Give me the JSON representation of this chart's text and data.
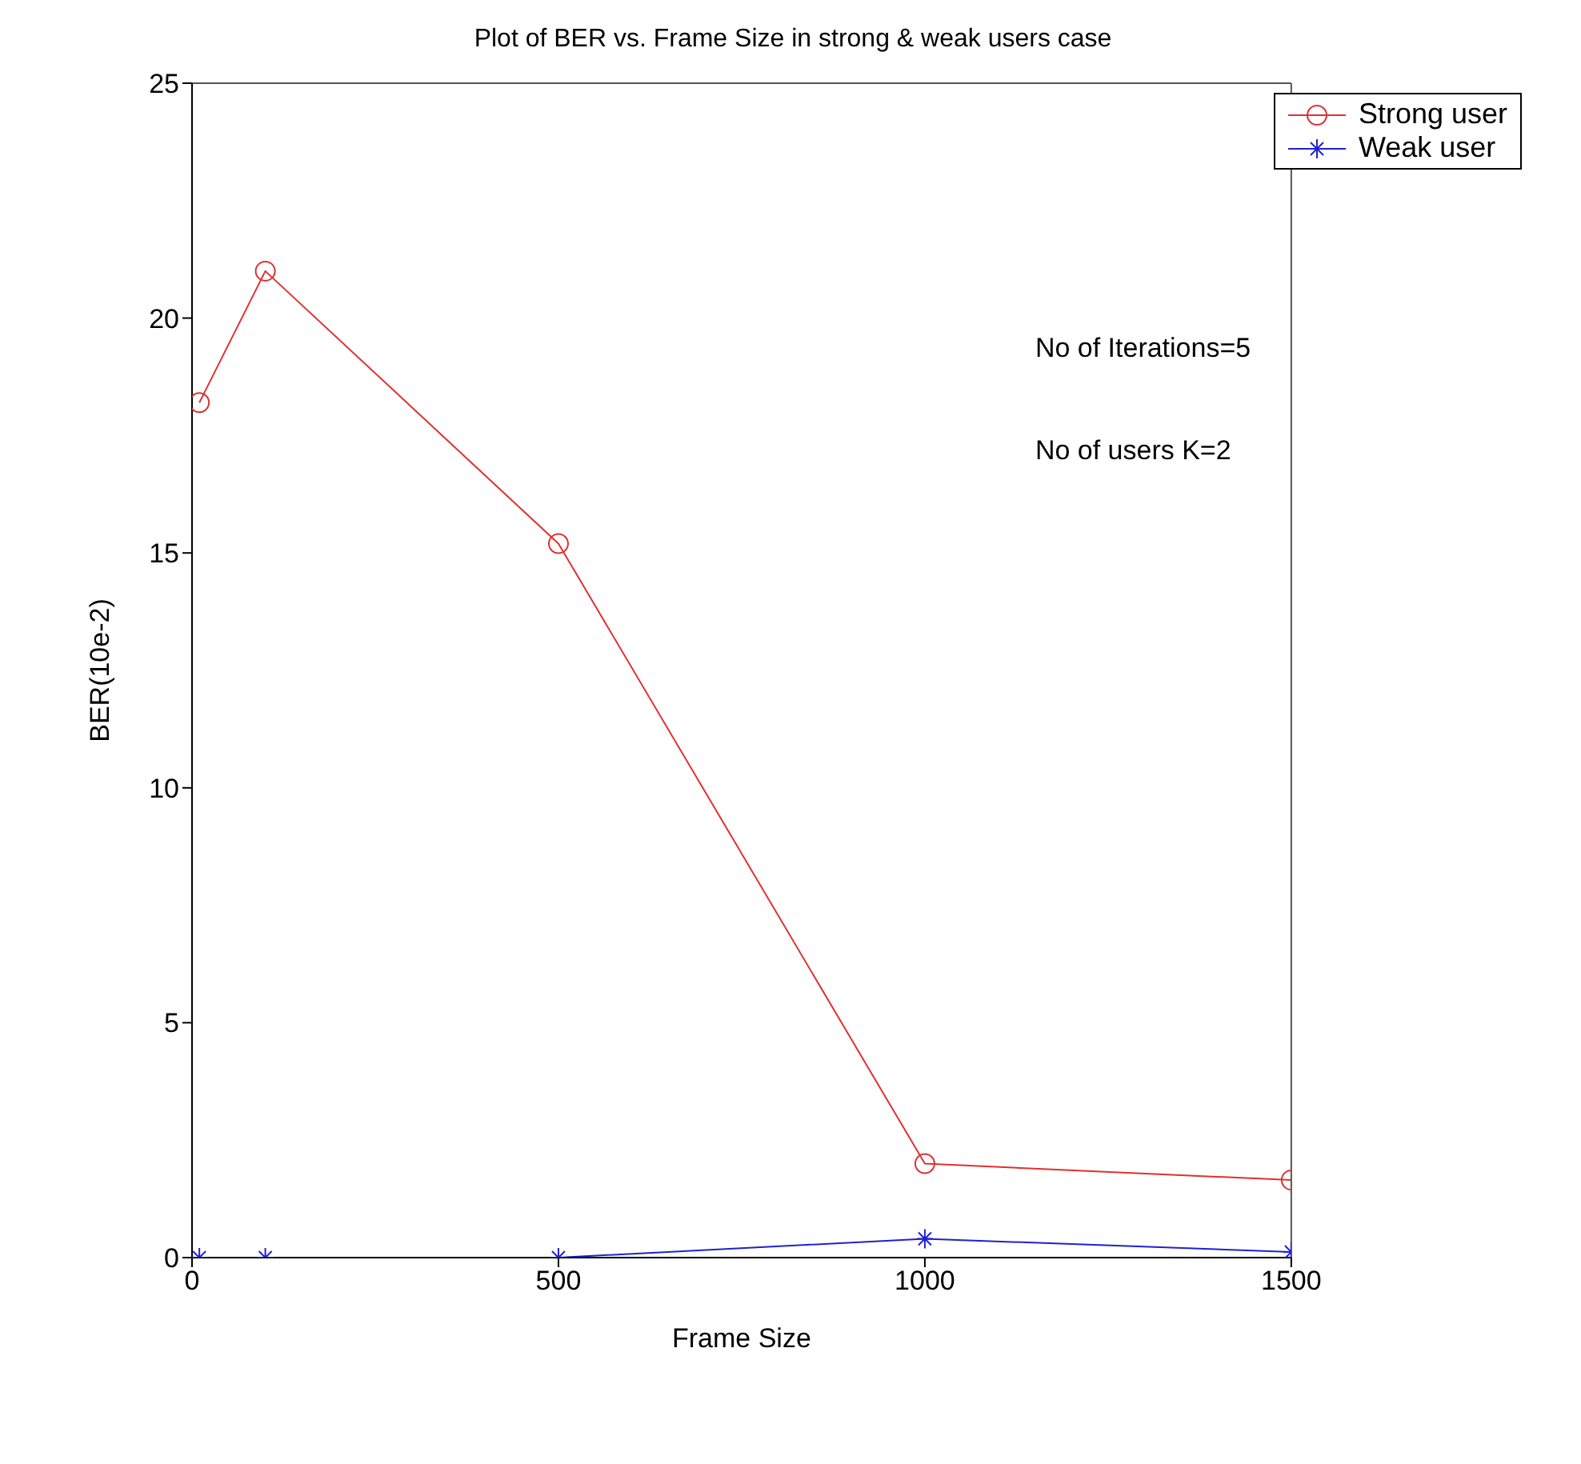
{
  "chart_data": {
    "type": "line",
    "title": "Plot of BER vs. Frame Size in strong & weak users case",
    "xlabel": "Frame Size",
    "ylabel": "BER(10e-2)",
    "x": [
      10,
      100,
      500,
      1000,
      1500
    ],
    "series": [
      {
        "name": "Strong user",
        "color": "#e03030",
        "marker": "circle",
        "values": [
          18.2,
          21,
          15.2,
          2,
          1.65
        ]
      },
      {
        "name": "Weak user",
        "color": "#2020d0",
        "marker": "cross",
        "values": [
          0,
          0,
          0,
          0.4,
          0.12
        ]
      }
    ],
    "xlim": [
      0,
      1500
    ],
    "xticks": [
      0,
      500,
      1000,
      1500
    ],
    "ylim": [
      0,
      25
    ],
    "yticks": [
      0,
      5,
      10,
      15,
      20,
      25
    ],
    "grid": false,
    "legend": "top right",
    "annotations": [
      "No of Iterations=5",
      "No of users K=2"
    ]
  }
}
